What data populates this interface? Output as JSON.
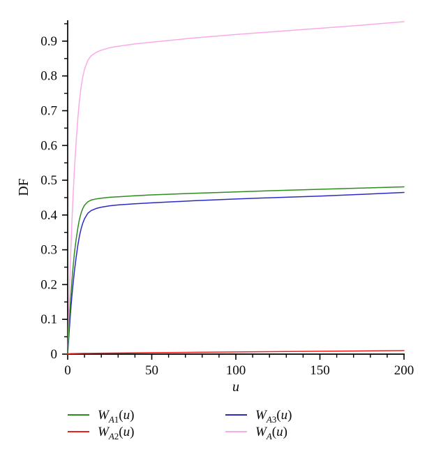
{
  "figure": {
    "background": "#ffffff",
    "axis_color": "#000000",
    "text_color": "#0a0a0a"
  },
  "chart_data": {
    "type": "line",
    "title": "",
    "xlabel": "u",
    "ylabel": "DF",
    "xlim": [
      0,
      200
    ],
    "ylim": [
      0,
      0.96
    ],
    "grid": false,
    "legend_position": "bottom",
    "x_major_ticks": [
      0,
      50,
      100,
      150,
      200
    ],
    "x_tick_labels": [
      "0",
      "50",
      "100",
      "150",
      "200"
    ],
    "x_minor_step": 10,
    "y_major_ticks": [
      0,
      0.1,
      0.2,
      0.3,
      0.4,
      0.5,
      0.6,
      0.7,
      0.8,
      0.9
    ],
    "y_tick_labels": [
      "0",
      "0.1",
      "0.2",
      "0.3",
      "0.4",
      "0.5",
      "0.6",
      "0.7",
      "0.8",
      "0.9"
    ],
    "y_minor_step": 0.05,
    "series": [
      {
        "name": "W_A1(u)",
        "color": "#2e8b1e",
        "x": [
          0,
          0.5,
          1,
          1.5,
          2,
          2.5,
          3,
          4,
          5,
          6,
          7,
          8,
          9,
          10,
          12,
          14,
          17,
          20,
          25,
          30,
          40,
          50,
          75,
          100,
          125,
          150,
          175,
          200
        ],
        "y": [
          0,
          0.048,
          0.095,
          0.138,
          0.175,
          0.208,
          0.238,
          0.29,
          0.33,
          0.362,
          0.388,
          0.406,
          0.419,
          0.428,
          0.438,
          0.443,
          0.4465,
          0.4485,
          0.451,
          0.4525,
          0.4555,
          0.458,
          0.4625,
          0.4665,
          0.4705,
          0.474,
          0.4775,
          0.481
        ]
      },
      {
        "name": "W_A2(u)",
        "color": "#f41c1c",
        "x": [
          0,
          1,
          2,
          5,
          10,
          25,
          50,
          75,
          100,
          150,
          200
        ],
        "y": [
          0,
          0.0012,
          0.0015,
          0.0018,
          0.0022,
          0.003,
          0.0042,
          0.0052,
          0.0062,
          0.0082,
          0.0102
        ]
      },
      {
        "name": "W_A3(u)",
        "color": "#2b2bc4",
        "x": [
          0,
          0.5,
          1,
          1.5,
          2,
          2.5,
          3,
          4,
          5,
          6,
          7,
          8,
          9,
          10,
          12,
          14,
          17,
          20,
          25,
          30,
          40,
          50,
          75,
          100,
          125,
          150,
          175,
          200
        ],
        "y": [
          0,
          0.036,
          0.072,
          0.106,
          0.138,
          0.166,
          0.192,
          0.238,
          0.278,
          0.312,
          0.34,
          0.361,
          0.377,
          0.389,
          0.405,
          0.413,
          0.419,
          0.4225,
          0.4265,
          0.429,
          0.4325,
          0.435,
          0.441,
          0.446,
          0.4505,
          0.4545,
          0.4595,
          0.465
        ]
      },
      {
        "name": "W_A(u)",
        "color": "#fca9e8",
        "x": [
          0,
          0.5,
          1,
          1.5,
          2,
          2.5,
          3,
          4,
          5,
          6,
          7,
          8,
          9,
          10,
          12,
          14,
          17,
          20,
          25,
          30,
          40,
          50,
          75,
          100,
          125,
          150,
          175,
          200
        ],
        "y": [
          0,
          0.085,
          0.168,
          0.245,
          0.315,
          0.376,
          0.432,
          0.53,
          0.61,
          0.676,
          0.73,
          0.769,
          0.798,
          0.819,
          0.845,
          0.858,
          0.868,
          0.874,
          0.881,
          0.885,
          0.892,
          0.897,
          0.909,
          0.919,
          0.928,
          0.937,
          0.946,
          0.956
        ]
      }
    ]
  },
  "legend": {
    "items": [
      {
        "id": "wa1",
        "series_index": 0,
        "base": "W",
        "sub": "A1",
        "arg": "u",
        "color": "#2e8b1e"
      },
      {
        "id": "wa2",
        "series_index": 1,
        "base": "W",
        "sub": "A2",
        "arg": "u",
        "color": "#f41c1c"
      },
      {
        "id": "wa3",
        "series_index": 2,
        "base": "W",
        "sub": "A3",
        "arg": "u",
        "color": "#2b2bc4"
      },
      {
        "id": "wa",
        "series_index": 3,
        "base": "W",
        "sub": "A",
        "arg": "u",
        "color": "#fca9e8"
      }
    ],
    "columns": [
      [
        0,
        1
      ],
      [
        2,
        3
      ]
    ]
  }
}
